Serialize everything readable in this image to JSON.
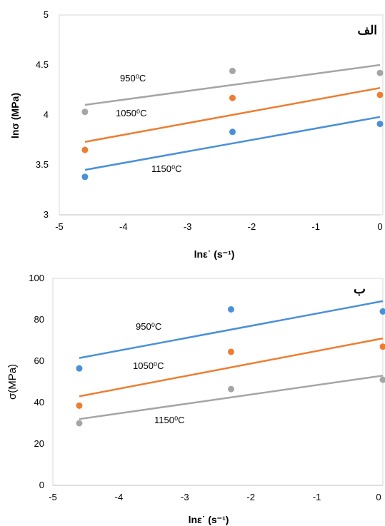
{
  "chart_data": [
    {
      "type": "scatter",
      "title": "الف",
      "xlabel": "lnε˙ (s⁻¹)",
      "ylabel": "lnσ (MPa)",
      "xlim": [
        -5,
        0
      ],
      "ylim": [
        3,
        5
      ],
      "x_ticks": [
        "-5",
        "-4",
        "-3",
        "-2",
        "-1",
        "0"
      ],
      "y_ticks": [
        "3",
        "3.5",
        "4",
        "4.5",
        "5"
      ],
      "grid": false,
      "series": [
        {
          "name": "950⁰C",
          "color": "#a5a5a5",
          "x": [
            -4.6,
            -2.3,
            0
          ],
          "y": [
            4.03,
            4.44,
            4.42
          ],
          "fit": [
            4.1,
            4.5
          ]
        },
        {
          "name": "1050⁰C",
          "color": "#ed7d31",
          "x": [
            -4.6,
            -2.3,
            0
          ],
          "y": [
            3.65,
            4.17,
            4.2
          ],
          "fit": [
            3.73,
            4.27
          ]
        },
        {
          "name": "1150⁰C",
          "color": "#4a90d9",
          "x": [
            -4.6,
            -2.3,
            0
          ],
          "y": [
            3.38,
            3.83,
            3.91
          ],
          "fit": [
            3.45,
            3.98
          ]
        }
      ]
    },
    {
      "type": "scatter",
      "title": "ب",
      "xlabel": "lnε˙ (s⁻¹)",
      "ylabel": "σ(MPa)",
      "xlim": [
        -5,
        0
      ],
      "ylim": [
        0,
        100
      ],
      "x_ticks": [
        "-5",
        "-4",
        "-3",
        "-2",
        "-1",
        "0"
      ],
      "y_ticks": [
        "0",
        "20",
        "40",
        "60",
        "80",
        "100"
      ],
      "grid": false,
      "series": [
        {
          "name": "950⁰C",
          "color": "#4a90d9",
          "x": [
            -4.6,
            -2.3,
            0
          ],
          "y": [
            56.5,
            85,
            84
          ],
          "fit": [
            61.5,
            89
          ]
        },
        {
          "name": "1050⁰C",
          "color": "#ed7d31",
          "x": [
            -4.6,
            -2.3,
            0
          ],
          "y": [
            38.5,
            64.5,
            67
          ],
          "fit": [
            43,
            71
          ]
        },
        {
          "name": "1150⁰C",
          "color": "#a5a5a5",
          "x": [
            -4.6,
            -2.3,
            0
          ],
          "y": [
            30,
            46.5,
            51
          ],
          "fit": [
            32,
            53
          ]
        }
      ]
    }
  ]
}
